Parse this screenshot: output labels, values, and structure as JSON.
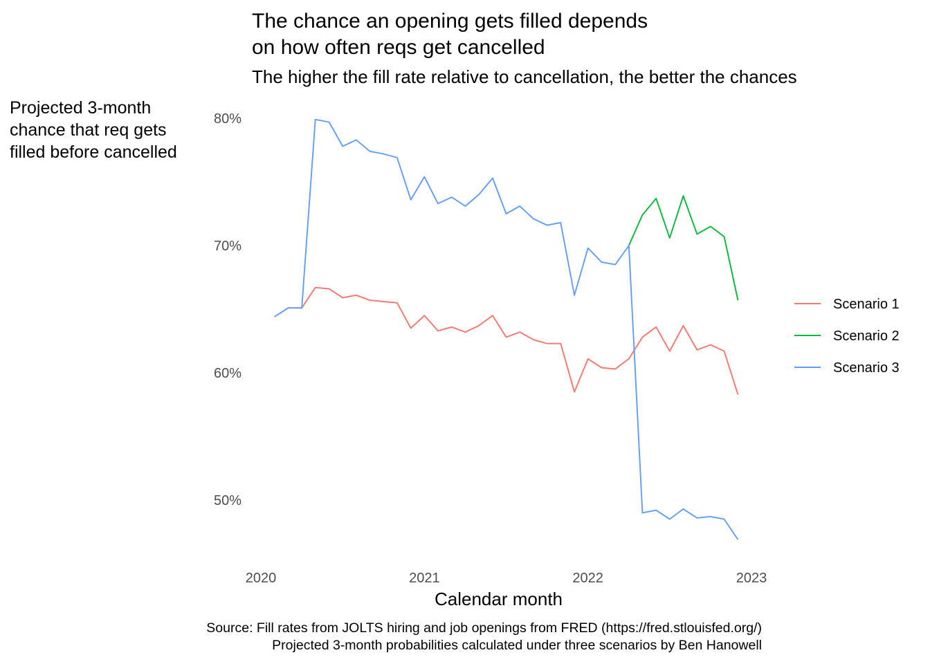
{
  "chart_data": {
    "type": "line",
    "title": [
      "The chance an opening gets filled depends",
      "on how often reqs get cancelled"
    ],
    "subtitle": "The higher the fill rate relative to cancellation, the better the chances",
    "ylabel": [
      "Projected 3-month",
      "chance that req gets",
      "filled before cancelled"
    ],
    "xlabel": "Calendar month",
    "caption": [
      "Source: Fill rates from JOLTS hiring and job openings from FRED (https://fred.stlouisfed.org/)",
      "Projected 3-month probabilities calculated under three scenarios by Ben Hanowell"
    ],
    "x_ticks": [
      2020,
      2021,
      2022,
      2023
    ],
    "y_ticks": [
      0.5,
      0.6,
      0.7,
      0.8
    ],
    "y_tick_labels": [
      "50%",
      "60%",
      "70%",
      "80%"
    ],
    "xlim": [
      2020.0,
      2023.0
    ],
    "ylim": [
      0.47,
      0.8
    ],
    "grid": false,
    "legend_position": "right",
    "x": [
      2020.083,
      2020.167,
      2020.25,
      2020.333,
      2020.417,
      2020.5,
      2020.583,
      2020.667,
      2020.75,
      2020.833,
      2020.917,
      2021.0,
      2021.083,
      2021.167,
      2021.25,
      2021.333,
      2021.417,
      2021.5,
      2021.583,
      2021.667,
      2021.75,
      2021.833,
      2021.917,
      2022.0,
      2022.083,
      2022.167,
      2022.25,
      2022.333,
      2022.417,
      2022.5,
      2022.583,
      2022.667,
      2022.75,
      2022.833,
      2022.917
    ],
    "series": [
      {
        "name": "Scenario 1",
        "color": "#F8766D",
        "values": [
          0.644,
          0.651,
          0.651,
          0.667,
          0.666,
          0.659,
          0.661,
          0.657,
          0.656,
          0.655,
          0.635,
          0.645,
          0.633,
          0.636,
          0.632,
          0.637,
          0.645,
          0.628,
          0.632,
          0.626,
          0.623,
          0.623,
          0.585,
          0.611,
          0.604,
          0.603,
          0.611,
          0.628,
          0.636,
          0.617,
          0.637,
          0.618,
          0.622,
          0.617,
          0.583
        ]
      },
      {
        "name": "Scenario 2",
        "color": "#00BA38",
        "values": [
          null,
          null,
          null,
          null,
          null,
          null,
          null,
          null,
          null,
          null,
          null,
          null,
          null,
          null,
          null,
          null,
          null,
          null,
          null,
          null,
          null,
          null,
          null,
          null,
          null,
          null,
          0.7,
          0.724,
          0.737,
          0.706,
          0.739,
          0.709,
          0.715,
          0.707,
          0.657
        ]
      },
      {
        "name": "Scenario 3",
        "color": "#619CFF",
        "values": [
          0.644,
          0.651,
          0.651,
          0.799,
          0.797,
          0.778,
          0.783,
          0.774,
          0.772,
          0.769,
          0.736,
          0.754,
          0.733,
          0.738,
          0.731,
          0.74,
          0.753,
          0.725,
          0.731,
          0.721,
          0.716,
          0.718,
          0.661,
          0.698,
          0.687,
          0.685,
          0.7,
          0.49,
          0.492,
          0.485,
          0.493,
          0.486,
          0.487,
          0.485,
          0.469
        ]
      }
    ]
  }
}
